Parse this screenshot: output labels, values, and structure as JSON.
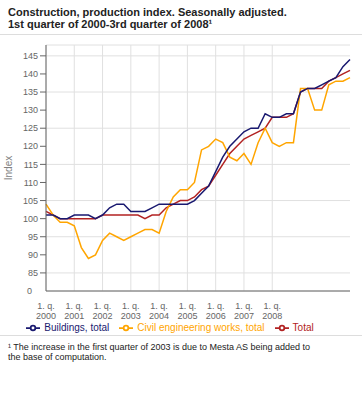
{
  "chart_data": {
    "type": "line",
    "title": "Construction, production index. Seasonally adjusted.",
    "subtitle": "1st quarter of 2000-3rd quarter of 2008¹",
    "y_label": "Index",
    "annotations": [
      "0",
      "¹ The increase in the first quarter of 2003 is due to Mesta AS being added to\nthe base of computation."
    ],
    "categories": [
      "1. q.\n2000",
      null,
      null,
      null,
      "1. q.\n2001",
      null,
      null,
      null,
      "1. q.\n2002",
      null,
      null,
      null,
      "1. q.\n2003",
      null,
      null,
      null,
      "1. q.\n2004",
      null,
      null,
      null,
      "1. q.\n2005",
      null,
      null,
      null,
      "1. q.\n2006",
      null,
      null,
      null,
      "1. q.\n2007",
      null,
      null,
      null,
      "1. q.\n2008",
      null,
      null,
      null,
      null,
      null,
      null,
      null,
      null,
      null,
      null,
      null
    ],
    "series": [
      {
        "name": "Total",
        "color": "#b22222",
        "values": [
          102,
          101,
          100,
          100,
          100,
          100,
          100,
          100,
          101,
          101,
          101,
          101,
          101,
          101,
          100,
          101,
          101,
          103,
          104,
          105,
          105,
          106,
          108,
          109,
          112,
          115,
          118,
          120,
          122,
          123,
          124,
          125,
          128,
          128,
          128,
          129,
          135,
          136,
          136,
          136,
          138,
          139,
          140,
          141
        ]
      },
      {
        "name": "Civil engineering works, total",
        "color": "#ffa500",
        "values": [
          104,
          101,
          99,
          99,
          98,
          92,
          89,
          90,
          94,
          96,
          95,
          94,
          95,
          96,
          97,
          97,
          96,
          102,
          106,
          108,
          108,
          110,
          119,
          120,
          122,
          121,
          117,
          116,
          118,
          115,
          121,
          125,
          121,
          120,
          121,
          121,
          136,
          136,
          130,
          130,
          137,
          138,
          138,
          139
        ]
      },
      {
        "name": "Buildings, total",
        "color": "#191970",
        "values": [
          101,
          101,
          100,
          100,
          101,
          101,
          101,
          100,
          101,
          103,
          104,
          104,
          102,
          102,
          102,
          103,
          104,
          104,
          104,
          104,
          104,
          105,
          107,
          109,
          113,
          117,
          120,
          122,
          124,
          125,
          125,
          129,
          128,
          128,
          129,
          129,
          135,
          136,
          136,
          137,
          138,
          139,
          142,
          144
        ]
      }
    ],
    "ylim": [
      80,
      148
    ],
    "yticks": [
      85,
      90,
      95,
      100,
      105,
      110,
      115,
      120,
      125,
      130,
      135,
      140,
      145
    ],
    "grid": true,
    "legend": "bottom"
  }
}
